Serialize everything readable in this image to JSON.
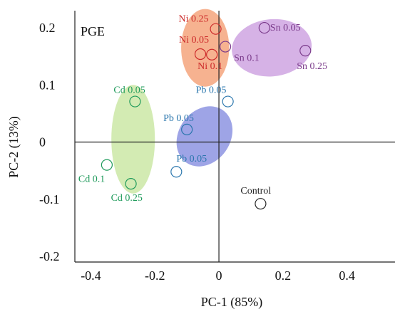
{
  "chart_data": {
    "type": "scatter",
    "panel_label": "PGE",
    "xlabel": "PC-1 (85%)",
    "ylabel": "PC-2 (13%)",
    "xlim": [
      -0.45,
      0.55
    ],
    "ylim": [
      -0.21,
      0.23
    ],
    "x_ticks": [
      -0.4,
      -0.2,
      0,
      0.2,
      0.4
    ],
    "x_tick_labels": [
      "-0.4",
      "-0.2",
      "0",
      "0.2",
      "0.4"
    ],
    "y_ticks": [
      -0.2,
      -0.1,
      0,
      0.1,
      0.2
    ],
    "y_tick_labels": [
      "-0.2",
      "-0.1",
      "0",
      "0.1",
      "0.2"
    ],
    "grid": false,
    "groups": [
      {
        "id": "ni",
        "color": "#cc2a2a",
        "fill": "#f4a47c",
        "ellipse": {
          "cx": -0.043,
          "cy": 0.165,
          "rx": 0.075,
          "ry": 0.068,
          "angle": 0
        },
        "points": [
          {
            "label": "Ni 0.25",
            "x": -0.01,
            "y": 0.198
          },
          {
            "label": "Ni 0.05",
            "x": -0.058,
            "y": 0.154
          },
          {
            "label": "Ni 0.1",
            "x": -0.022,
            "y": 0.153
          }
        ]
      },
      {
        "id": "sn",
        "color": "#7a3a8a",
        "fill": "#cfa4e2",
        "ellipse": {
          "cx": 0.165,
          "cy": 0.165,
          "rx": 0.125,
          "ry": 0.05,
          "angle": -6
        },
        "points": [
          {
            "label": "Sn 0.05",
            "x": 0.142,
            "y": 0.2
          },
          {
            "label": "Sn 0.1",
            "x": 0.02,
            "y": 0.167
          },
          {
            "label": "Sn 0.25",
            "x": 0.27,
            "y": 0.16
          }
        ]
      },
      {
        "id": "cd",
        "color": "#1e9a5a",
        "fill": "#cbe8a6",
        "ellipse": {
          "cx": -0.268,
          "cy": 0.005,
          "rx": 0.068,
          "ry": 0.095,
          "angle": 0
        },
        "points": [
          {
            "label": "Cd 0.05",
            "x": -0.262,
            "y": 0.071
          },
          {
            "label": "Cd 0.1",
            "x": -0.35,
            "y": -0.04
          },
          {
            "label": "Cd 0.25",
            "x": -0.275,
            "y": -0.073
          }
        ]
      },
      {
        "id": "pb",
        "color": "#2a76ad",
        "fill": "#8d94e2",
        "ellipse": {
          "cx": -0.045,
          "cy": 0.01,
          "rx": 0.1,
          "ry": 0.045,
          "angle": -55
        },
        "points": [
          {
            "label": "Pb 0.05",
            "x": 0.028,
            "y": 0.071
          },
          {
            "label": "Pb 0.05",
            "x": -0.1,
            "y": 0.022
          },
          {
            "label": "Pb 0.05",
            "x": -0.133,
            "y": -0.052
          }
        ]
      },
      {
        "id": "control",
        "color": "#222222",
        "fill": "none",
        "ellipse": null,
        "points": [
          {
            "label": "Control",
            "x": 0.13,
            "y": -0.108
          }
        ]
      }
    ]
  }
}
